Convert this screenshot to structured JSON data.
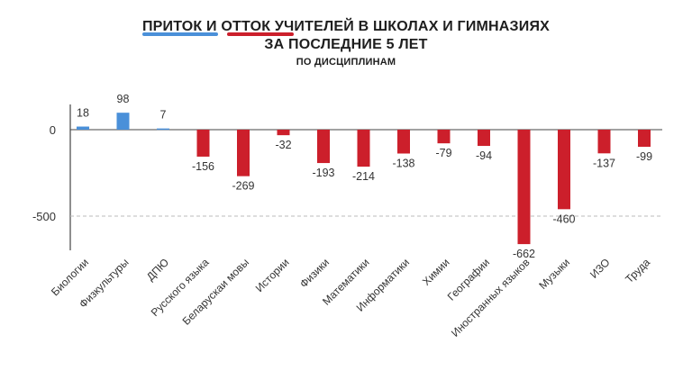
{
  "title": {
    "line1": "ПРИТОК И ОТТОК УЧИТЕЛЕЙ В ШКОЛАХ И ГИМНАЗИЯХ",
    "line2": "ЗА ПОСЛЕДНИЕ 5 ЛЕТ",
    "line3": "ПО ДИСЦИПЛИНАМ"
  },
  "colors": {
    "positive": "#4a90d9",
    "negative": "#cc1f2b",
    "axis": "#444444",
    "gridline": "#bbbbbb"
  },
  "chart_data": {
    "type": "bar",
    "categories": [
      "Биологии",
      "Физкультуры",
      "ДПЮ",
      "Русского языка",
      "Беларускаи мовы",
      "Истории",
      "Физики",
      "Математики",
      "Информатики",
      "Химии",
      "Географии",
      "Иностранных языков",
      "Музыки",
      "ИЗО",
      "Труда"
    ],
    "values": [
      18,
      98,
      7,
      -156,
      -269,
      -32,
      -193,
      -214,
      -138,
      -79,
      -94,
      -662,
      -460,
      -137,
      -99
    ],
    "value_labels": [
      "18",
      "98",
      "7",
      "-156",
      "-269",
      "-32",
      "-193",
      "-214",
      "-138",
      "-79",
      "-94",
      "-662",
      "-460",
      "-137",
      "-99"
    ],
    "y_ticks": [
      0,
      -500
    ],
    "y_tick_labels": [
      "0",
      "-500"
    ],
    "ylim": [
      -700,
      150
    ],
    "gridline_at": -500,
    "title": "ПРИТОК И ОТТОК УЧИТЕЛЕЙ В ШКОЛАХ И ГИМНАЗИЯХ ЗА ПОСЛЕДНИЕ 5 ЛЕТ",
    "subtitle": "ПО ДИСЦИПЛИНАМ",
    "xlabel": "",
    "ylabel": "",
    "grid": false,
    "legend": "none"
  }
}
